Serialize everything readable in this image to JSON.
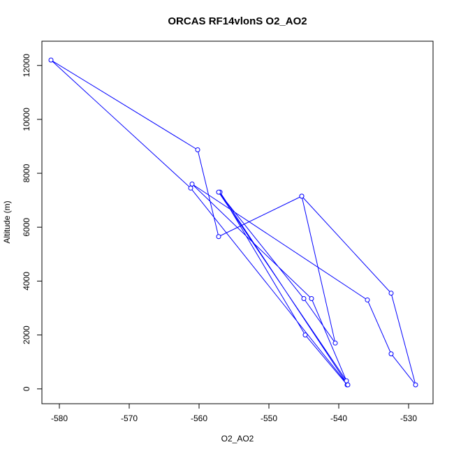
{
  "chart_data": {
    "type": "line",
    "title": "ORCAS RF14vlonS O2_AO2",
    "xlabel": "O2_AO2",
    "ylabel": "Altitude (m)",
    "xlim": [
      -582.5,
      -526.5
    ],
    "ylim": [
      -550,
      12900
    ],
    "xticks": [
      -580,
      -570,
      -560,
      -550,
      -540,
      -530
    ],
    "yticks": [
      0,
      2000,
      4000,
      6000,
      8000,
      10000,
      12000
    ],
    "grid": false,
    "points_marker": "open-circle",
    "colors": {
      "series": "#0000ff",
      "axes": "#000000"
    },
    "series": [
      {
        "x": [
          -538.8,
          -544.8,
          -557.0,
          -538.7,
          -561.2,
          -581.2,
          -560.2,
          -557.2,
          -545.3,
          -540.5,
          -545.0,
          -557.2,
          -538.9,
          -543.9,
          -561.0,
          -535.9,
          -532.5,
          -529.0,
          -532.5,
          -545.3
        ],
        "y": [
          150,
          2000,
          7300,
          150,
          7450,
          12200,
          8870,
          5650,
          7150,
          1700,
          3350,
          7300,
          300,
          3350,
          7600,
          3300,
          1300,
          150,
          3550,
          7150
        ]
      }
    ]
  }
}
